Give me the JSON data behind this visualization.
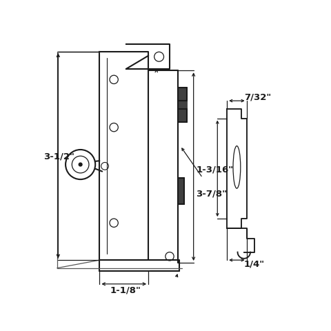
{
  "bg_color": "#ffffff",
  "line_color": "#1a1a1a",
  "text_color": "#1a1a1a",
  "labels": {
    "height_left": "3-1/2\"",
    "height_right": "3-7/8\"",
    "width_bottom": "1-1/8\"",
    "side_width": "7/32\"",
    "side_height": "1-3/16\"",
    "side_bottom": "1/4\""
  }
}
